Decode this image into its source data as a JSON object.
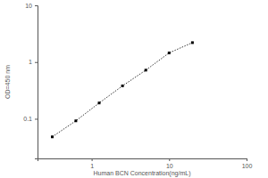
{
  "chart_data": {
    "type": "line",
    "x_label": "Human BCN Concentration(ng/mL)",
    "y_label": "OD=450 nm",
    "x": [
      0.31,
      0.625,
      1.25,
      2.5,
      5,
      10,
      20
    ],
    "values": [
      0.048,
      0.092,
      0.19,
      0.38,
      0.72,
      1.45,
      2.2
    ],
    "color": "#000000",
    "marker": "square",
    "line_style": "dotted",
    "log": true,
    "xlim": [
      0.2,
      100
    ],
    "xticks": [
      1,
      10,
      100
    ],
    "ylim": [
      0.02,
      10
    ],
    "yticks": [
      0.1,
      1,
      10
    ],
    "grid": false
  }
}
